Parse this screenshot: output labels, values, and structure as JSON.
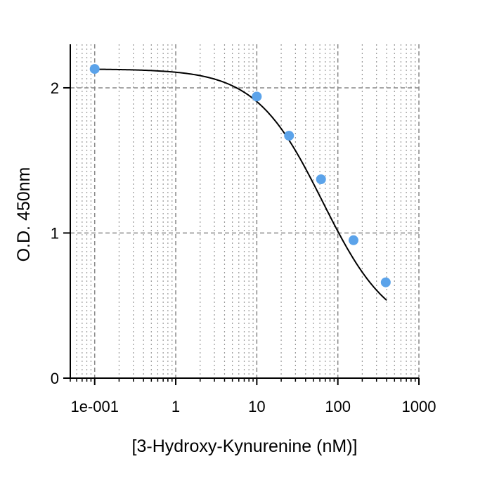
{
  "chart_data": {
    "type": "scatter",
    "title": "",
    "xlabel": "[3-Hydroxy-Kynurenine (nM)]",
    "ylabel": "O.D. 450nm",
    "x_scale": "log",
    "xlim": [
      0.05,
      1000
    ],
    "ylim": [
      0,
      2.3
    ],
    "grid": true,
    "x_ticks": [
      {
        "value": 0.1,
        "label": "1e-001"
      },
      {
        "value": 1,
        "label": "1"
      },
      {
        "value": 10,
        "label": "10"
      },
      {
        "value": 100,
        "label": "100"
      },
      {
        "value": 1000,
        "label": "1000"
      }
    ],
    "y_ticks": [
      {
        "value": 0,
        "label": "0"
      },
      {
        "value": 1,
        "label": "1"
      },
      {
        "value": 2,
        "label": "2"
      }
    ],
    "series": [
      {
        "points": [
          {
            "x": 0.1,
            "y": 2.13
          },
          {
            "x": 10,
            "y": 1.94
          },
          {
            "x": 25,
            "y": 1.67
          },
          {
            "x": 62,
            "y": 1.37
          },
          {
            "x": 156,
            "y": 0.95
          },
          {
            "x": 390,
            "y": 0.66
          }
        ],
        "color": "#5ba3ea"
      }
    ],
    "fit_curve": {
      "type": "4PL",
      "top": 2.13,
      "bottom": 0.3,
      "ec50": 65,
      "hill": 1.05,
      "x_range": [
        0.1,
        400
      ],
      "color": "#000000"
    }
  }
}
